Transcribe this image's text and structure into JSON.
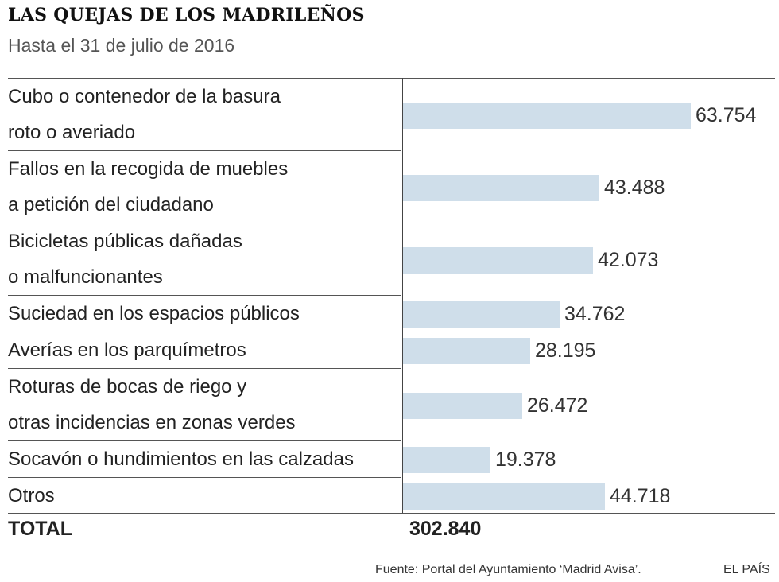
{
  "title": "LAS QUEJAS DE LOS MADRILEÑOS",
  "subtitle": "Hasta el 31 de julio de 2016",
  "colors": {
    "bar": "#cfdeea",
    "rule": "#555555"
  },
  "chart_data": {
    "type": "bar",
    "orientation": "horizontal",
    "title": "LAS QUEJAS DE LOS MADRILEÑOS",
    "subtitle": "Hasta el 31 de julio de 2016",
    "categories": [
      [
        "Cubo o contenedor de la basura",
        "roto o averiado"
      ],
      [
        "Fallos en la recogida de muebles",
        "a petición del ciudadano"
      ],
      [
        "Bicicletas públicas dañadas",
        "o malfuncionantes"
      ],
      [
        "Suciedad en los espacios públicos"
      ],
      [
        "Averías en los parquímetros"
      ],
      [
        "Roturas de bocas de riego y",
        "otras incidencias en zonas verdes"
      ],
      [
        "Socavón o hundimientos en las calzadas"
      ],
      [
        "Otros"
      ]
    ],
    "values": [
      63754,
      43488,
      42073,
      34762,
      28195,
      26472,
      19378,
      44718
    ],
    "value_labels": [
      "63.754",
      "43.488",
      "42.073",
      "34.762",
      "28.195",
      "26.472",
      "19.378",
      "44.718"
    ],
    "xlim": [
      0,
      70000
    ],
    "total_label": "TOTAL",
    "total_value": "302.840"
  },
  "footer": {
    "source": "Fuente: Portal del Ayuntamiento ‘Madrid Avisa’.",
    "brand": "EL PAÍS"
  }
}
